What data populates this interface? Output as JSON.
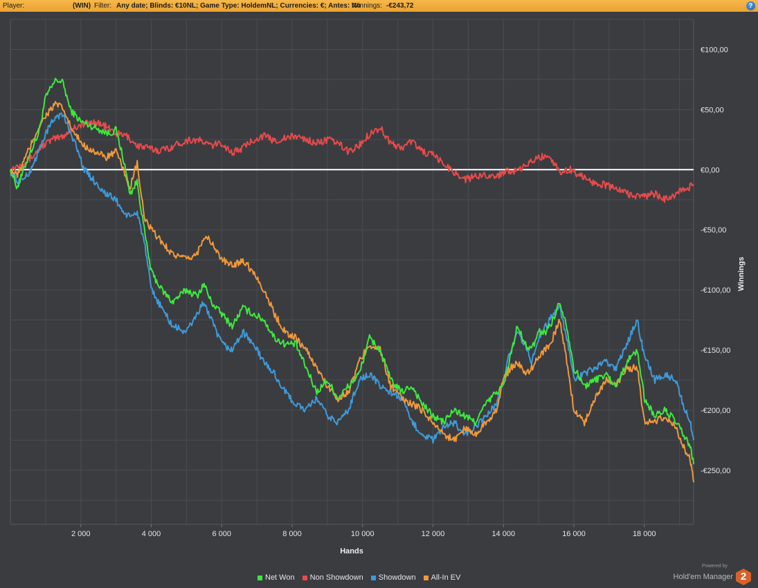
{
  "header": {
    "player_label": "Player:",
    "player_name": "",
    "site": "(WIN)",
    "filter_label": "Filter:",
    "filter_value": "Any date; Blinds: €10NL; Game Type: HoldemNL; Currencies: €; Antes: No",
    "winnings_label": "Winnings:",
    "winnings_value": "-€243,72",
    "help": "?"
  },
  "footer": {
    "powered_by": "Powered by",
    "product": "Hold'em Manager",
    "badge": "2"
  },
  "colors": {
    "background": "#3a3c40",
    "grid": "#4d5055",
    "zero_line": "#ffffff",
    "header": "#f2ad3c"
  },
  "chart_data": {
    "type": "line",
    "xlabel": "Hands",
    "ylabel": "Winnings",
    "xlim": [
      0,
      19400
    ],
    "ylim": [
      -295,
      125
    ],
    "x_ticks": [
      2000,
      4000,
      6000,
      8000,
      10000,
      12000,
      14000,
      16000,
      18000
    ],
    "x_tick_labels": [
      "2 000",
      "4 000",
      "6 000",
      "8 000",
      "10 000",
      "12 000",
      "14 000",
      "16 000",
      "18 000"
    ],
    "y_ticks": [
      100,
      50,
      0,
      -50,
      -100,
      -150,
      -200,
      -250
    ],
    "y_tick_labels": [
      "€100,00",
      "€50,00",
      "€0,00",
      "-€50,00",
      "-€100,00",
      "-€150,00",
      "-€200,00",
      "-€250,00"
    ],
    "grid": true,
    "legend_position": "bottom",
    "series": [
      {
        "name": "Net Won",
        "color": "#3ee83e",
        "x": [
          0,
          200,
          500,
          800,
          1000,
          1300,
          1500,
          1700,
          2000,
          2400,
          2800,
          3000,
          3200,
          3400,
          3600,
          3800,
          4000,
          4300,
          4600,
          5000,
          5300,
          5500,
          5700,
          6000,
          6300,
          6600,
          6900,
          7200,
          7500,
          7800,
          8100,
          8400,
          8700,
          9000,
          9300,
          9600,
          9900,
          10200,
          10500,
          10800,
          11100,
          11400,
          11700,
          12000,
          12300,
          12600,
          12900,
          13200,
          13500,
          13800,
          14000,
          14200,
          14400,
          14600,
          14800,
          15000,
          15200,
          15400,
          15600,
          15800,
          16000,
          16300,
          16600,
          16900,
          17200,
          17500,
          17800,
          18000,
          18300,
          18600,
          18900,
          19100,
          19300,
          19400
        ],
        "values": [
          0,
          -15,
          10,
          30,
          60,
          75,
          72,
          50,
          40,
          35,
          30,
          33,
          10,
          -20,
          -10,
          -50,
          -85,
          -100,
          -110,
          -100,
          -105,
          -95,
          -110,
          -120,
          -130,
          -115,
          -120,
          -125,
          -140,
          -145,
          -145,
          -165,
          -185,
          -175,
          -190,
          -180,
          -170,
          -140,
          -150,
          -175,
          -185,
          -180,
          -195,
          -205,
          -210,
          -200,
          -205,
          -210,
          -195,
          -185,
          -180,
          -155,
          -130,
          -145,
          -150,
          -135,
          -135,
          -125,
          -110,
          -130,
          -165,
          -180,
          -175,
          -170,
          -180,
          -160,
          -150,
          -190,
          -205,
          -200,
          -210,
          -220,
          -230,
          -245
        ]
      },
      {
        "name": "Non Showdown",
        "color": "#e84a4a",
        "x": [
          0,
          300,
          600,
          900,
          1200,
          1500,
          1800,
          2100,
          2400,
          2700,
          3000,
          3300,
          3600,
          3900,
          4200,
          4500,
          4800,
          5100,
          5400,
          5700,
          6000,
          6300,
          6600,
          6900,
          7200,
          7500,
          7800,
          8100,
          8400,
          8700,
          9000,
          9300,
          9600,
          9900,
          10200,
          10500,
          10800,
          11100,
          11400,
          11700,
          12000,
          12300,
          12600,
          12900,
          13200,
          13500,
          13800,
          14100,
          14400,
          14700,
          15000,
          15300,
          15600,
          15900,
          16200,
          16500,
          16800,
          17100,
          17400,
          17700,
          18000,
          18300,
          18600,
          18900,
          19200,
          19400
        ],
        "values": [
          0,
          5,
          10,
          20,
          25,
          28,
          35,
          38,
          40,
          36,
          30,
          28,
          20,
          18,
          16,
          18,
          22,
          25,
          24,
          20,
          22,
          14,
          18,
          25,
          28,
          24,
          26,
          28,
          25,
          22,
          25,
          22,
          15,
          20,
          30,
          35,
          22,
          18,
          24,
          15,
          12,
          5,
          -2,
          -8,
          -6,
          -4,
          -6,
          0,
          -2,
          5,
          10,
          12,
          -2,
          0,
          -5,
          -10,
          -12,
          -15,
          -18,
          -22,
          -22,
          -20,
          -25,
          -20,
          -16,
          -12
        ]
      },
      {
        "name": "Showdown",
        "color": "#3f9ad9",
        "x": [
          0,
          200,
          500,
          800,
          1000,
          1300,
          1500,
          1800,
          2100,
          2400,
          2700,
          3000,
          3200,
          3400,
          3600,
          3800,
          4000,
          4300,
          4600,
          5000,
          5300,
          5500,
          5700,
          6000,
          6300,
          6600,
          6900,
          7200,
          7500,
          7800,
          8100,
          8400,
          8700,
          9000,
          9300,
          9600,
          9900,
          10200,
          10500,
          10800,
          11100,
          11400,
          11700,
          12000,
          12300,
          12600,
          12900,
          13200,
          13500,
          13800,
          14000,
          14200,
          14400,
          14600,
          14800,
          15000,
          15200,
          15400,
          15600,
          15800,
          16000,
          16300,
          16600,
          16900,
          17200,
          17500,
          17800,
          18000,
          18300,
          18600,
          18900,
          19100,
          19300,
          19400
        ],
        "values": [
          0,
          -10,
          -5,
          15,
          30,
          45,
          45,
          25,
          0,
          -10,
          -20,
          -25,
          -35,
          -40,
          -35,
          -60,
          -100,
          -115,
          -130,
          -135,
          -120,
          -110,
          -125,
          -145,
          -150,
          -135,
          -145,
          -160,
          -170,
          -185,
          -195,
          -200,
          -190,
          -205,
          -210,
          -200,
          -175,
          -170,
          -180,
          -185,
          -190,
          -210,
          -220,
          -225,
          -215,
          -210,
          -220,
          -215,
          -205,
          -195,
          -175,
          -150,
          -135,
          -145,
          -160,
          -140,
          -130,
          -120,
          -115,
          -140,
          -175,
          -170,
          -165,
          -160,
          -165,
          -145,
          -125,
          -155,
          -175,
          -170,
          -175,
          -195,
          -210,
          -225
        ]
      },
      {
        "name": "All-In EV",
        "color": "#f0983a",
        "x": [
          0,
          200,
          500,
          800,
          1000,
          1300,
          1500,
          1800,
          2100,
          2400,
          2700,
          3000,
          3200,
          3400,
          3600,
          3800,
          4000,
          4300,
          4600,
          5000,
          5300,
          5500,
          5700,
          6000,
          6300,
          6600,
          6900,
          7200,
          7500,
          7800,
          8100,
          8400,
          8700,
          9000,
          9300,
          9600,
          9900,
          10200,
          10500,
          10800,
          11100,
          11400,
          11700,
          12000,
          12300,
          12600,
          12900,
          13200,
          13500,
          13800,
          14000,
          14200,
          14400,
          14600,
          14800,
          15000,
          15200,
          15400,
          15600,
          15800,
          16000,
          16300,
          16600,
          16900,
          17200,
          17500,
          17800,
          18000,
          18300,
          18600,
          18900,
          19100,
          19300,
          19400
        ],
        "values": [
          0,
          -5,
          15,
          35,
          45,
          55,
          50,
          30,
          20,
          15,
          10,
          15,
          0,
          -15,
          5,
          -40,
          -50,
          -60,
          -70,
          -75,
          -70,
          -55,
          -60,
          -75,
          -80,
          -75,
          -85,
          -100,
          -120,
          -135,
          -140,
          -150,
          -165,
          -180,
          -190,
          -185,
          -160,
          -145,
          -150,
          -180,
          -190,
          -195,
          -200,
          -210,
          -220,
          -225,
          -215,
          -220,
          -210,
          -200,
          -175,
          -165,
          -160,
          -170,
          -165,
          -155,
          -150,
          -140,
          -125,
          -160,
          -200,
          -210,
          -190,
          -175,
          -180,
          -165,
          -165,
          -210,
          -210,
          -205,
          -215,
          -230,
          -240,
          -260
        ]
      }
    ]
  }
}
